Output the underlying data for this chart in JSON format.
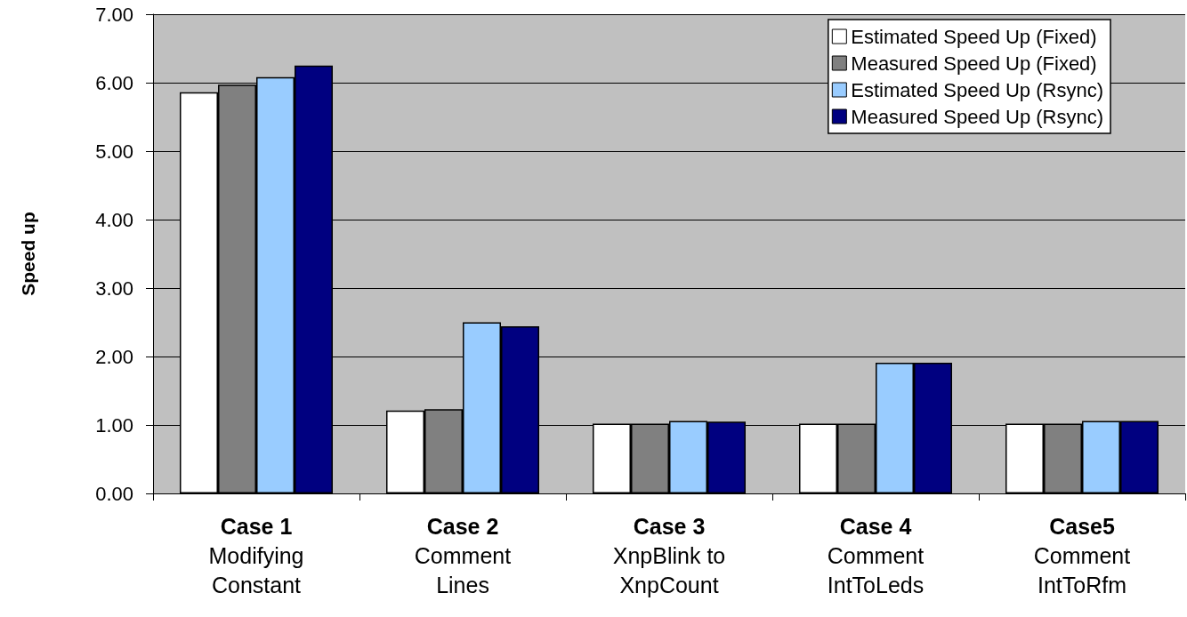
{
  "chart_data": {
    "type": "bar",
    "ylabel": "Speed up",
    "categories": [
      "Case 1\nModifying\nConstant",
      "Case 2\nComment\nLines",
      "Case 3\nXnpBlink to\nXnpCount",
      "Case 4\nComment\nIntToLeds",
      "Case5\nComment\nIntToRfm"
    ],
    "series": [
      {
        "name": "Estimated Speed Up (Fixed)",
        "color": "#ffffff",
        "values": [
          5.86,
          1.21,
          1.02,
          1.02,
          1.02
        ]
      },
      {
        "name": "Measured Speed Up (Fixed)",
        "color": "#808080",
        "values": [
          5.97,
          1.23,
          1.02,
          1.02,
          1.02
        ]
      },
      {
        "name": "Estimated Speed Up (Rsync)",
        "color": "#99ccff",
        "values": [
          6.08,
          2.5,
          1.06,
          1.91,
          1.06
        ]
      },
      {
        "name": "Measured Speed Up (Rsync)",
        "color": "#000080",
        "values": [
          6.25,
          2.44,
          1.05,
          1.91,
          1.06
        ]
      }
    ],
    "ylim": [
      0,
      7
    ],
    "yticks": [
      {
        "value": 0,
        "label": "0.00"
      },
      {
        "value": 1,
        "label": "1.00"
      },
      {
        "value": 2,
        "label": "2.00"
      },
      {
        "value": 3,
        "label": "3.00"
      },
      {
        "value": 4,
        "label": "4.00"
      },
      {
        "value": 5,
        "label": "5.00"
      },
      {
        "value": 6,
        "label": "6.00"
      },
      {
        "value": 7,
        "label": "7.00"
      }
    ],
    "grid": "y",
    "legend": "top right"
  }
}
